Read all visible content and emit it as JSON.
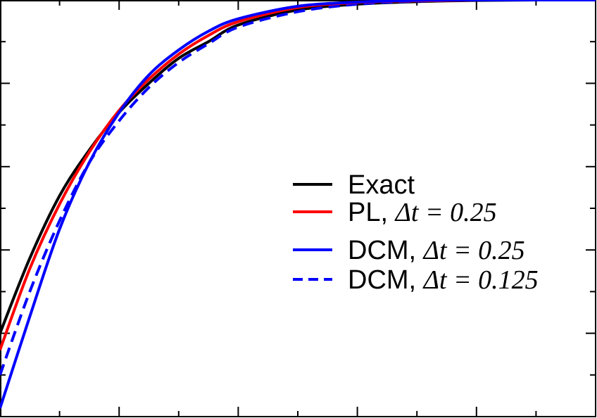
{
  "chart_data": {
    "type": "line",
    "title": "",
    "xlabel": "",
    "ylabel": "",
    "xlim": [
      0,
      10
    ],
    "ylim": [
      0,
      1
    ],
    "x_ticks_major": [
      0,
      2,
      4,
      6,
      8,
      10
    ],
    "x_ticks_minor": [
      1,
      3,
      5,
      7,
      9
    ],
    "y_ticks_major": [
      0,
      0.2,
      0.4,
      0.6,
      0.8,
      1.0
    ],
    "y_ticks_minor": [
      0.1,
      0.3,
      0.5,
      0.7,
      0.9
    ],
    "grid": false,
    "legend_position": "center-right",
    "series": [
      {
        "name": "Exact",
        "color": "#000000",
        "dash": "solid",
        "x": [
          0,
          0.5,
          1,
          1.5,
          2,
          2.5,
          3,
          3.5,
          4,
          5,
          6,
          7,
          8,
          9,
          10
        ],
        "y": [
          0.2,
          0.38,
          0.53,
          0.64,
          0.73,
          0.8,
          0.86,
          0.9,
          0.94,
          0.976,
          0.99,
          0.996,
          0.999,
          1.0,
          1.0
        ]
      },
      {
        "name": "PL, Δt = 0.25",
        "color": "#ff0000",
        "dash": "solid",
        "x": [
          0,
          0.5,
          1,
          1.5,
          2,
          2.5,
          3,
          3.5,
          4,
          5,
          6,
          7,
          8,
          9,
          10
        ],
        "y": [
          0.16,
          0.355,
          0.51,
          0.635,
          0.735,
          0.81,
          0.87,
          0.915,
          0.948,
          0.982,
          0.994,
          0.998,
          1.0,
          1.0,
          1.0
        ]
      },
      {
        "name": "DCM, Δt = 0.25",
        "color": "#0000ff",
        "dash": "solid",
        "x": [
          0,
          0.5,
          1,
          1.5,
          2,
          2.5,
          3,
          3.5,
          4,
          5,
          6,
          7,
          8,
          9,
          10
        ],
        "y": [
          0.02,
          0.24,
          0.45,
          0.61,
          0.73,
          0.82,
          0.88,
          0.925,
          0.955,
          0.985,
          0.995,
          0.999,
          1.0,
          1.0,
          1.0
        ]
      },
      {
        "name": "DCM, Δt = 0.125",
        "color": "#0000ff",
        "dash": "dashed",
        "x": [
          0,
          0.5,
          1,
          1.5,
          2,
          2.5,
          3,
          3.5,
          4,
          5,
          6,
          7,
          8,
          9,
          10
        ],
        "y": [
          0.1,
          0.3,
          0.47,
          0.61,
          0.71,
          0.79,
          0.85,
          0.895,
          0.935,
          0.972,
          0.99,
          0.997,
          1.0,
          1.0,
          1.0
        ]
      }
    ],
    "legend": {
      "entries": [
        {
          "prefix": "Exact",
          "math": ""
        },
        {
          "prefix": "PL, ",
          "math": "Δt = 0.25"
        },
        {
          "prefix": "DCM, ",
          "math": "Δt = 0.25"
        },
        {
          "prefix": "DCM, ",
          "math": "Δt = 0.125"
        }
      ]
    }
  }
}
